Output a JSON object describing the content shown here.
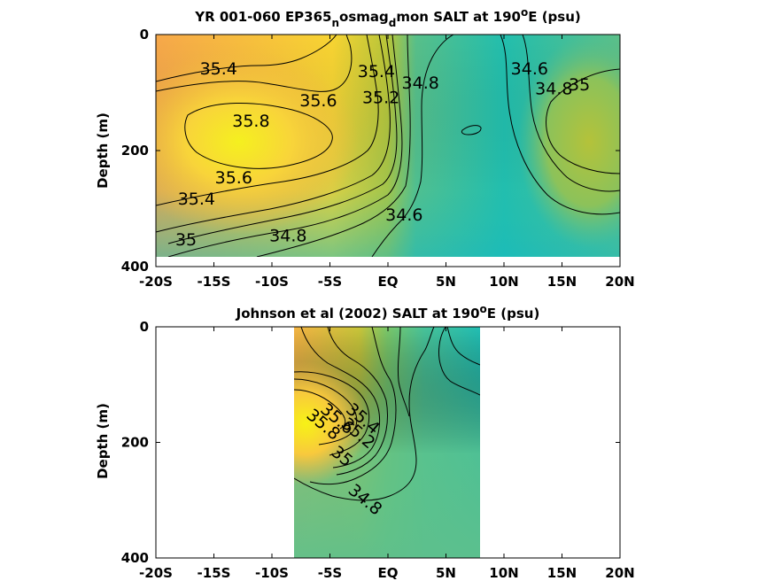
{
  "chart_data": [
    {
      "type": "heatmap",
      "title_parts": [
        "YR 001-060 EP365",
        "n",
        "osmag",
        "d",
        "mon SALT at 190",
        "o",
        "E (psu)"
      ],
      "ylabel": "Depth (m)",
      "xlabel": "",
      "xlim": [
        -20,
        20
      ],
      "ylim": [
        0,
        400
      ],
      "y_reversed": true,
      "x_ticks": [
        -20,
        -15,
        -10,
        -5,
        0,
        5,
        10,
        15,
        20
      ],
      "x_tick_labels": [
        "-20S",
        "-15S",
        "-10S",
        "-5S",
        "EQ",
        "5N",
        "10N",
        "15N",
        "20N"
      ],
      "y_ticks": [
        0,
        200,
        400
      ],
      "y_tick_labels": [
        "0",
        "200",
        "400"
      ],
      "data_extent": {
        "x": [
          -20,
          20
        ],
        "y": [
          0,
          385
        ]
      },
      "colormap": "parula",
      "contour_levels": [
        34.6,
        34.8,
        35,
        35.2,
        35.4,
        35.6,
        35.8
      ],
      "contour_labels": [
        {
          "text": "35.4",
          "x": -14.6,
          "y": 60
        },
        {
          "text": "35.6",
          "x": -6.0,
          "y": 115
        },
        {
          "text": "35.8",
          "x": -11.8,
          "y": 150
        },
        {
          "text": "35.6",
          "x": -13.3,
          "y": 248
        },
        {
          "text": "35.4",
          "x": -16.5,
          "y": 285
        },
        {
          "text": "35",
          "x": -17.4,
          "y": 355
        },
        {
          "text": "34.8",
          "x": -8.6,
          "y": 348
        },
        {
          "text": "34.6",
          "x": 1.4,
          "y": 312
        },
        {
          "text": "34.8",
          "x": 2.8,
          "y": 85
        },
        {
          "text": "34.6",
          "x": 12.2,
          "y": 60
        },
        {
          "text": "34.8",
          "x": 14.3,
          "y": 95
        },
        {
          "text": "35",
          "x": 16.5,
          "y": 88
        },
        {
          "text": "35.4",
          "x": -1.0,
          "y": 65
        },
        {
          "text": "35.2",
          "x": -0.6,
          "y": 110
        }
      ]
    },
    {
      "type": "heatmap",
      "title_parts": [
        "Johnson et al (2002) SALT at 190",
        "o",
        "E (psu)"
      ],
      "ylabel": "Depth (m)",
      "xlabel": "",
      "xlim": [
        -20,
        20
      ],
      "ylim": [
        0,
        400
      ],
      "y_reversed": true,
      "x_ticks": [
        -20,
        -15,
        -10,
        -5,
        0,
        5,
        10,
        15,
        20
      ],
      "x_tick_labels": [
        "-20S",
        "-15S",
        "-10S",
        "-5S",
        "EQ",
        "5N",
        "10N",
        "15N",
        "20N"
      ],
      "y_ticks": [
        0,
        200,
        400
      ],
      "y_tick_labels": [
        "0",
        "200",
        "400"
      ],
      "data_extent": {
        "x": [
          -8,
          8
        ],
        "y": [
          0,
          400
        ]
      },
      "colormap": "parula",
      "contour_levels": [
        34.6,
        34.8,
        35,
        35.2,
        35.4,
        35.6,
        35.8,
        36
      ],
      "contour_labels": [
        {
          "text": "34.8",
          "x": -2.0,
          "y": 300
        },
        {
          "text": "35",
          "x": -4.0,
          "y": 225
        },
        {
          "text": "35.2",
          "x": -2.6,
          "y": 185
        },
        {
          "text": "35.4",
          "x": -2.2,
          "y": 160
        },
        {
          "text": "35.6",
          "x": -4.4,
          "y": 160
        },
        {
          "text": "35.8",
          "x": -5.6,
          "y": 170
        }
      ]
    }
  ]
}
